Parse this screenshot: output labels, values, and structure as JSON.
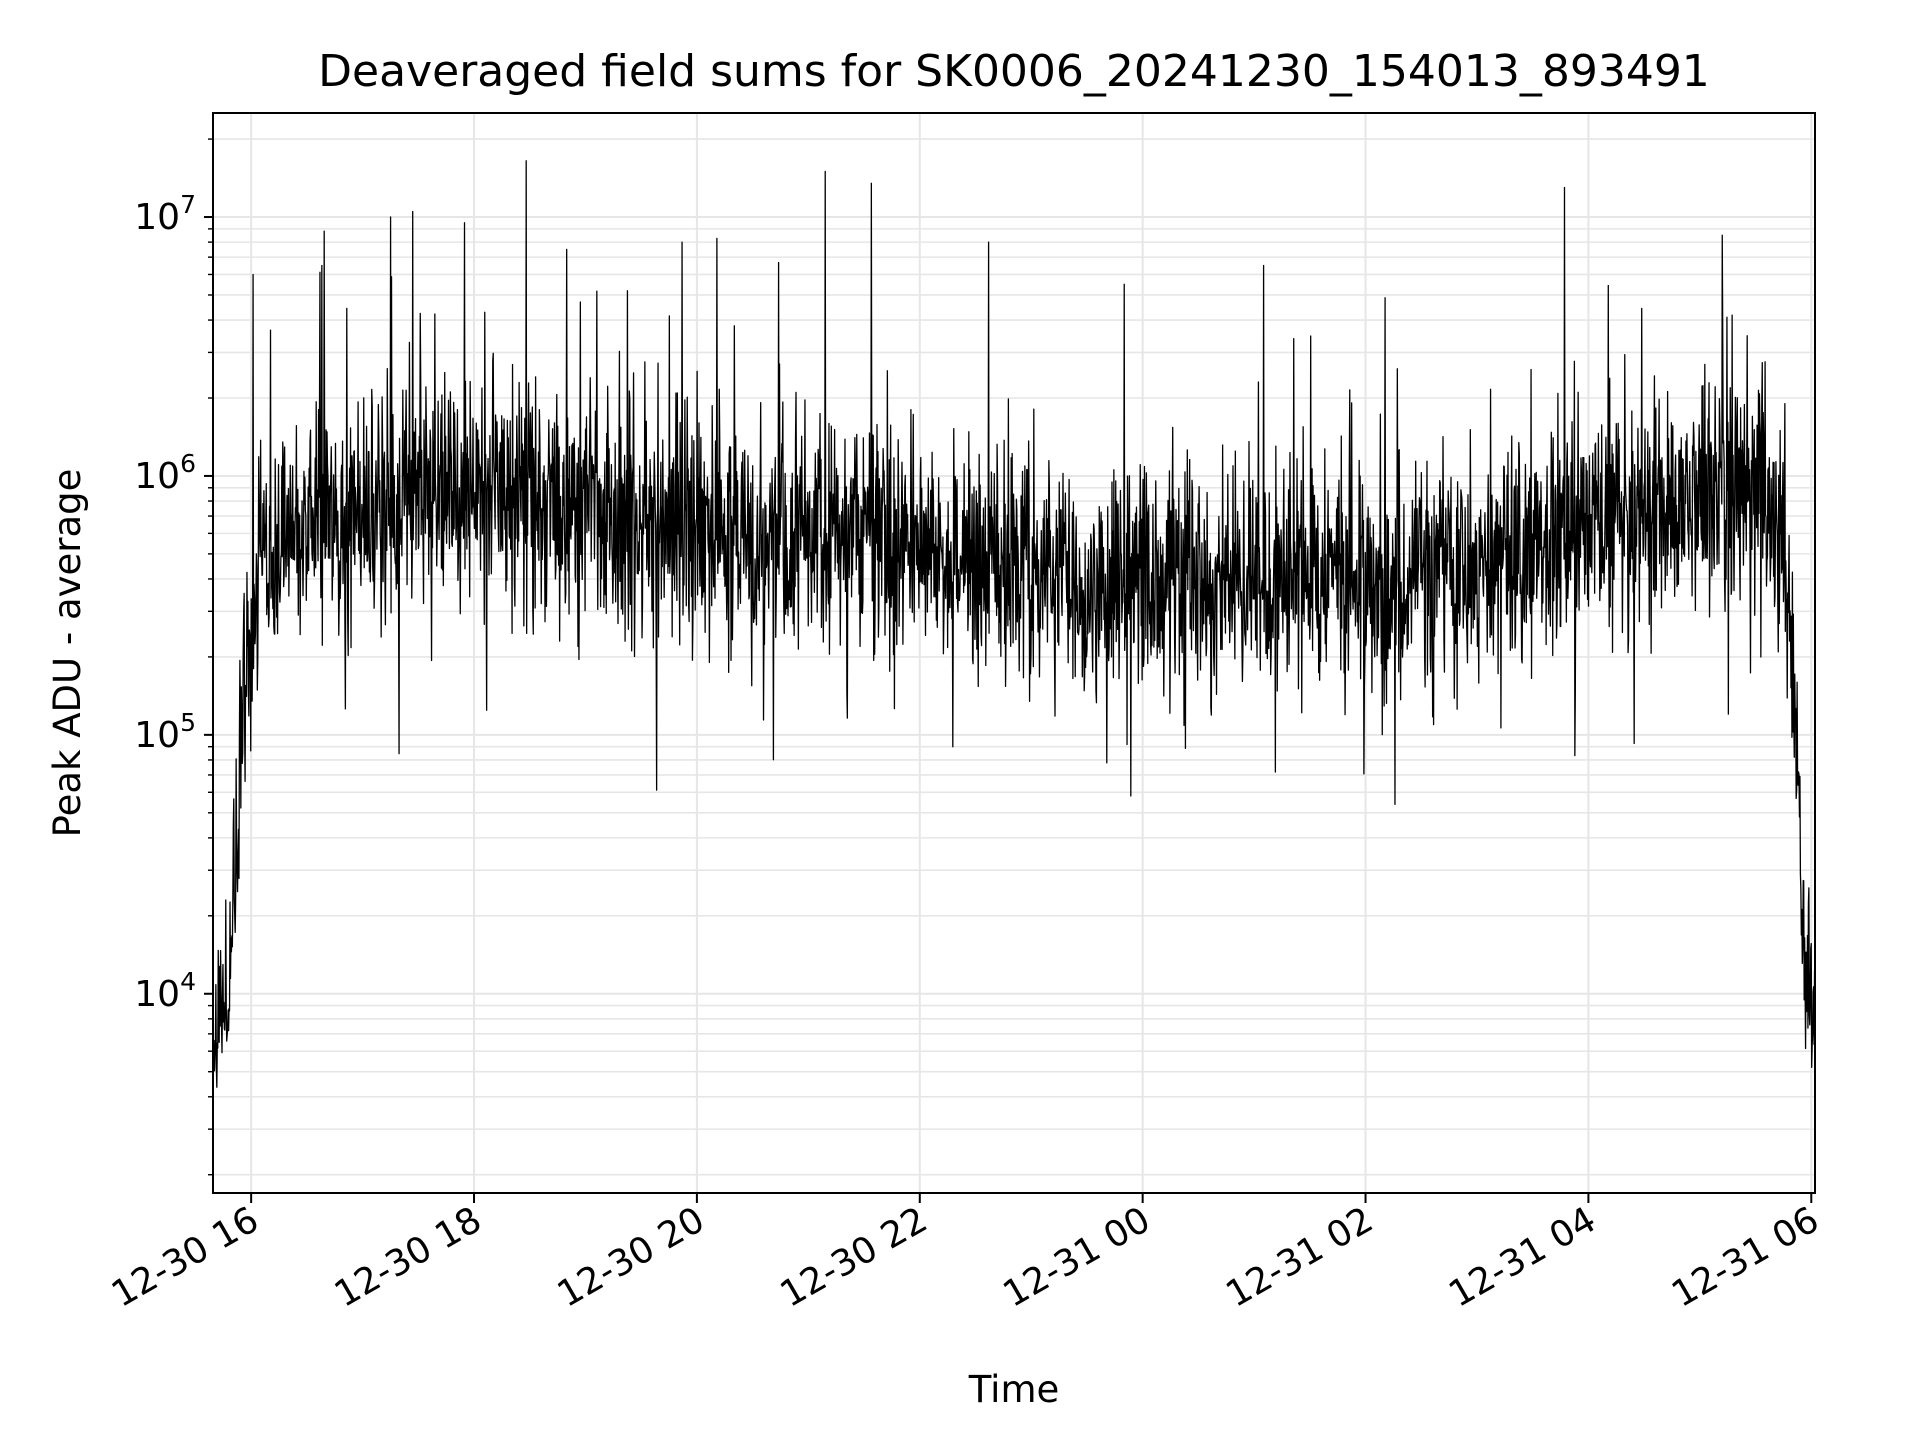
{
  "chart_data": {
    "type": "line",
    "title": "Deaveraged field sums for SK0006_20241230_154013_893491",
    "xlabel": "Time",
    "ylabel": "Peak ADU - average",
    "yscale": "log",
    "ylim": [
      1700,
      25000000
    ],
    "xlim": [
      "2024-12-30 15:40",
      "2024-12-31 06:02"
    ],
    "grid": true,
    "line_color": "#000000",
    "grid_color": "#e6e6e6",
    "x_ticks": [
      "12-30 16",
      "12-30 18",
      "12-30 20",
      "12-30 22",
      "12-31 00",
      "12-31 02",
      "12-31 04",
      "12-31 06"
    ],
    "y_ticks": [
      {
        "base": "10",
        "exp": "4"
      },
      {
        "base": "10",
        "exp": "5"
      },
      {
        "base": "10",
        "exp": "6"
      },
      {
        "base": "10",
        "exp": "7"
      }
    ],
    "series": [
      {
        "x": [
          "2024-12-30 15:40",
          "2024-12-30 15:44",
          "2024-12-30 15:48",
          "2024-12-30 15:52",
          "2024-12-30 15:56",
          "2024-12-30 16:00",
          "2024-12-30 16:05",
          "2024-12-30 16:10",
          "2024-12-30 16:20",
          "2024-12-30 16:40",
          "2024-12-30 17:00",
          "2024-12-30 17:30",
          "2024-12-30 18:00",
          "2024-12-30 18:30",
          "2024-12-30 19:00",
          "2024-12-30 19:30",
          "2024-12-30 20:00",
          "2024-12-30 20:30",
          "2024-12-30 21:00",
          "2024-12-30 21:30",
          "2024-12-30 22:00",
          "2024-12-30 22:30",
          "2024-12-30 23:00",
          "2024-12-30 23:30",
          "2024-12-31 00:00",
          "2024-12-31 00:30",
          "2024-12-31 01:00",
          "2024-12-31 01:30",
          "2024-12-31 02:00",
          "2024-12-31 02:30",
          "2024-12-31 03:00",
          "2024-12-31 03:30",
          "2024-12-31 04:00",
          "2024-12-31 04:30",
          "2024-12-31 05:00",
          "2024-12-31 05:30",
          "2024-12-31 05:45",
          "2024-12-31 05:50",
          "2024-12-31 05:54",
          "2024-12-31 05:58",
          "2024-12-31 06:02"
        ],
        "values": [
          8000,
          12000,
          10000,
          40000,
          150000,
          300000,
          500000,
          600000,
          650000,
          700000,
          750000,
          850000,
          950000,
          800000,
          700000,
          650000,
          600000,
          550000,
          600000,
          580000,
          550000,
          480000,
          420000,
          400000,
          380000,
          400000,
          420000,
          400000,
          380000,
          400000,
          450000,
          500000,
          600000,
          700000,
          850000,
          950000,
          600000,
          200000,
          30000,
          12000,
          8000
        ],
        "peaks": [
          {
            "x": "2024-12-30 16:01",
            "y": 6000000
          },
          {
            "x": "2024-12-30 16:38",
            "y": 6500000
          },
          {
            "x": "2024-12-30 17:15",
            "y": 10000000
          },
          {
            "x": "2024-12-30 17:27",
            "y": 10500000
          },
          {
            "x": "2024-12-30 17:55",
            "y": 9500000
          },
          {
            "x": "2024-12-30 18:28",
            "y": 16500000
          },
          {
            "x": "2024-12-30 18:50",
            "y": 7500000
          },
          {
            "x": "2024-12-30 19:52",
            "y": 8000000
          },
          {
            "x": "2024-12-30 21:09",
            "y": 15000000
          },
          {
            "x": "2024-12-30 21:34",
            "y": 13500000
          },
          {
            "x": "2024-12-30 22:37",
            "y": 8000000
          },
          {
            "x": "2024-12-30 23:50",
            "y": 5500000
          },
          {
            "x": "2024-12-31 01:05",
            "y": 6500000
          },
          {
            "x": "2024-12-31 03:47",
            "y": 13000000
          },
          {
            "x": "2024-12-31 05:12",
            "y": 8500000
          }
        ]
      }
    ]
  }
}
